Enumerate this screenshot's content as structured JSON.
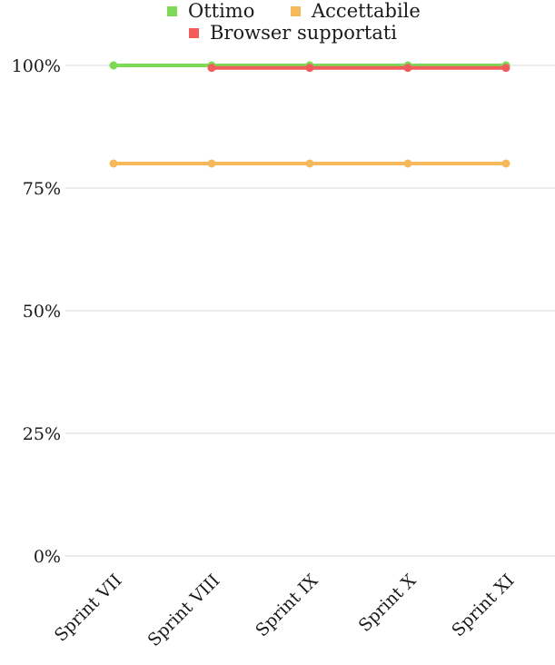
{
  "chart_data": {
    "type": "line",
    "title": "",
    "xlabel": "",
    "ylabel": "",
    "categories": [
      "Sprint VII",
      "Sprint VIII",
      "Sprint IX",
      "Sprint X",
      "Sprint XI"
    ],
    "series": [
      {
        "name": "Ottimo",
        "color": "#7ed957",
        "values": [
          100,
          100,
          100,
          100,
          100
        ]
      },
      {
        "name": "Accettabile",
        "color": "#f5b85a",
        "values": [
          80,
          80,
          80,
          80,
          80
        ]
      },
      {
        "name": "Browser supportati",
        "color": "#f45b5b",
        "values": [
          null,
          99.5,
          99.5,
          99.5,
          99.5
        ]
      }
    ],
    "ylim": [
      0,
      100
    ],
    "yticks": [
      {
        "value": 0,
        "label": "0%"
      },
      {
        "value": 25,
        "label": "25%"
      },
      {
        "value": 50,
        "label": "50%"
      },
      {
        "value": 75,
        "label": "75%"
      },
      {
        "value": 100,
        "label": "100%"
      }
    ],
    "grid": true,
    "legend_position": "top"
  }
}
